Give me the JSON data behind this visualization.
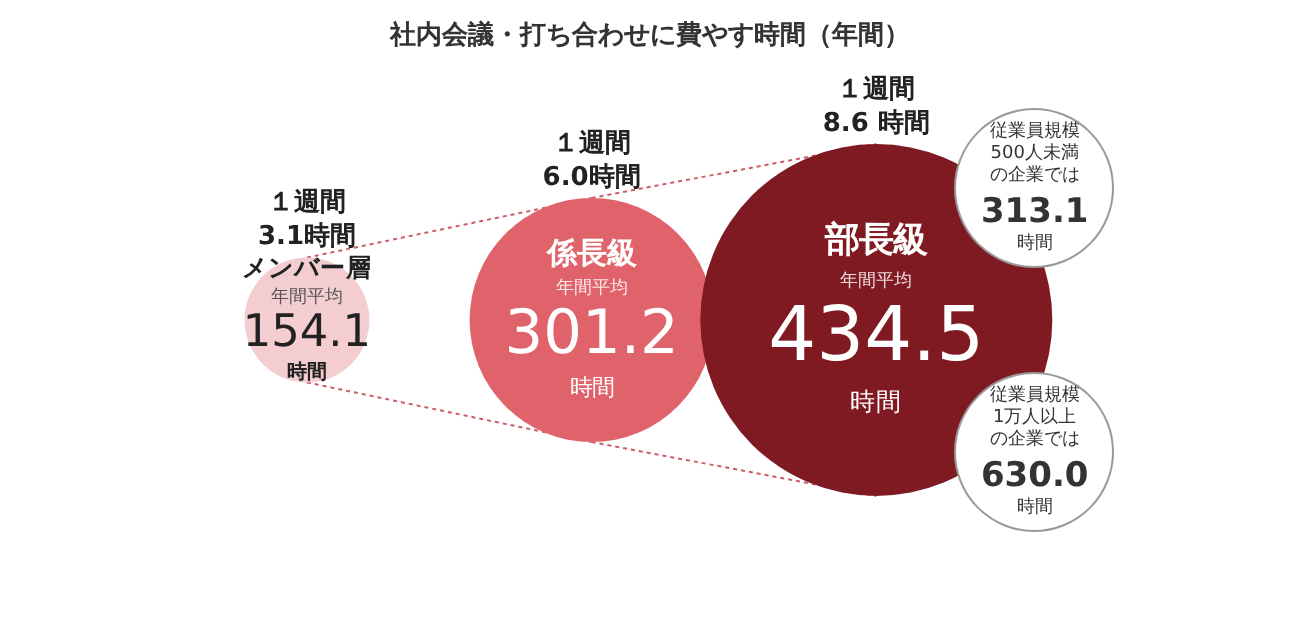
{
  "chart_data": {
    "type": "other",
    "title": "社内会議・打ち合わせに費やす時間（年間）",
    "categories": [
      "メンバー層",
      "係長級",
      "部長級"
    ],
    "values": [
      154.1,
      301.2,
      434.5
    ],
    "colors": [
      "#f4cdd0",
      "#e0636b",
      "#7f1a22"
    ],
    "data_labels": true,
    "annotations": [
      {
        "text": "１週間\n3.1時間",
        "x": "メンバー層"
      },
      {
        "text": "年間平均",
        "x": "メンバー層"
      },
      {
        "text": "時間",
        "x": "メンバー層"
      },
      {
        "text": "１週間\n6.0時間",
        "x": "係長級"
      },
      {
        "text": "年間平均",
        "x": "係長級"
      },
      {
        "text": "時間",
        "x": "係長級"
      },
      {
        "text": "１週間\n8.6 時間",
        "x": "部長級"
      },
      {
        "text": "年間平均",
        "x": "部長級"
      },
      {
        "text": "時間",
        "x": "部長級"
      },
      {
        "text": "従業員規模500人未満の企業では",
        "x": "部長級"
      },
      {
        "text": "313.1",
        "x": "部長級"
      },
      {
        "text": "時間",
        "x": "部長級"
      },
      {
        "text": "従業員規模1万人以上の企業では",
        "x": "部長級"
      },
      {
        "text": "630.0",
        "x": "部長級"
      },
      {
        "text": "時間",
        "x": "部長級"
      }
    ]
  }
}
